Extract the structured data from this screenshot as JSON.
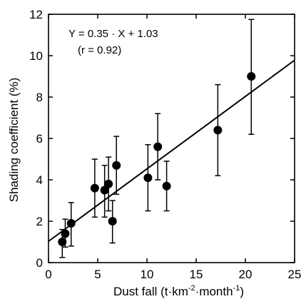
{
  "chart_data": {
    "type": "scatter",
    "xlabel_main": "Dust fall (t",
    "xlabel_unit_km": "km",
    "xlabel_exp_km": "-2",
    "xlabel_unit_month": "month",
    "xlabel_exp_month": "-1",
    "xlabel_close": ")",
    "xlabel_dot": "·",
    "ylabel": "Shading coefficient (%)",
    "xlim": [
      0,
      25
    ],
    "ylim": [
      0,
      12
    ],
    "xticks": [
      0,
      5,
      10,
      15,
      20,
      25
    ],
    "yticks": [
      0,
      2,
      4,
      6,
      8,
      10,
      12
    ],
    "xtick_labels": [
      "0",
      "5",
      "10",
      "15",
      "20",
      "25"
    ],
    "ytick_labels": [
      "0",
      "2",
      "4",
      "6",
      "8",
      "10",
      "12"
    ],
    "annotation_line1": "Y = 0.35 · X + 1.03",
    "annotation_line2": "(r = 0.92)",
    "regression": {
      "slope": 0.35,
      "intercept": 1.03
    },
    "points": [
      {
        "x": 1.4,
        "y": 1.0,
        "err_low": 0.25,
        "err_high": 1.6
      },
      {
        "x": 1.7,
        "y": 1.4,
        "err_low": 0.75,
        "err_high": 2.1
      },
      {
        "x": 2.3,
        "y": 1.9,
        "err_low": 0.8,
        "err_high": 2.9
      },
      {
        "x": 4.7,
        "y": 3.6,
        "err_low": 2.2,
        "err_high": 5.0
      },
      {
        "x": 5.7,
        "y": 3.5,
        "err_low": 2.2,
        "err_high": 4.7
      },
      {
        "x": 6.1,
        "y": 3.8,
        "err_low": 2.5,
        "err_high": 5.1
      },
      {
        "x": 6.5,
        "y": 2.0,
        "err_low": 0.95,
        "err_high": 3.0
      },
      {
        "x": 6.9,
        "y": 4.7,
        "err_low": 3.3,
        "err_high": 6.1
      },
      {
        "x": 10.1,
        "y": 4.1,
        "err_low": 2.5,
        "err_high": 5.7
      },
      {
        "x": 11.1,
        "y": 5.6,
        "err_low": 4.0,
        "err_high": 7.2
      },
      {
        "x": 12.0,
        "y": 3.7,
        "err_low": 2.5,
        "err_high": 4.9
      },
      {
        "x": 17.2,
        "y": 6.4,
        "err_low": 4.2,
        "err_high": 8.6
      },
      {
        "x": 20.6,
        "y": 9.0,
        "err_low": 6.2,
        "err_high": 11.75
      }
    ],
    "grid": false,
    "marker_color": "#000000"
  }
}
